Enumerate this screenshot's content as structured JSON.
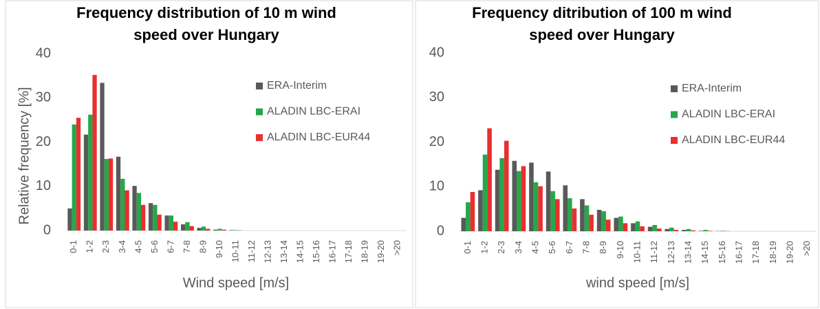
{
  "chart_data": [
    {
      "type": "bar",
      "title": [
        "Frequency distribution of 10 m wind",
        "speed over Hungary"
      ],
      "y_label": "Relative frequency [%]",
      "x_label": "Wind speed [m/s]",
      "categories": [
        "0-1",
        "1-2",
        "2-3",
        "3-4",
        "4-5",
        "5-6",
        "6-7",
        "7-8",
        "8-9",
        "9-10",
        "10-11",
        "11-12",
        "12-13",
        "13-14",
        "14-15",
        "15-16",
        "16-17",
        "17-18",
        "18-19",
        "19-20",
        ">20"
      ],
      "series": [
        {
          "name": "ERA-Interim",
          "color": "#595959",
          "values": [
            5,
            21.7,
            33.4,
            16.7,
            10.1,
            6.2,
            3.4,
            1.4,
            0.6,
            0.2,
            0.1,
            0,
            0,
            0,
            0,
            0,
            0,
            0,
            0,
            0,
            0
          ]
        },
        {
          "name": "ALADIN LBC-ERAI",
          "color": "#24a84a",
          "values": [
            24,
            26.2,
            16.2,
            11.7,
            8.5,
            5.8,
            3.4,
            1.9,
            0.9,
            0.4,
            0.1,
            0,
            0,
            0,
            0,
            0,
            0,
            0,
            0,
            0,
            0
          ]
        },
        {
          "name": "ALADIN LBC-EUR44",
          "color": "#e8302e",
          "values": [
            25.5,
            35.2,
            16.3,
            9.1,
            5.8,
            3.6,
            2.0,
            1.0,
            0.4,
            0.2,
            0.05,
            0,
            0,
            0,
            0,
            0,
            0,
            0,
            0,
            0,
            0
          ]
        }
      ],
      "ylim": [
        0,
        40
      ],
      "yticks": [
        0,
        10,
        20,
        30,
        40
      ],
      "grid": false
    },
    {
      "type": "bar",
      "title": [
        "Frequency ditribution of 100 m wind",
        "speed over Hungary"
      ],
      "x_label": "wind speed [m/s]",
      "categories": [
        "0-1",
        "1-2",
        "2-3",
        "3-4",
        "4-5",
        "5-6",
        "6-7",
        "7-8",
        "8-9",
        "9-10",
        "10-11",
        "11-12",
        "12-13",
        "13-14",
        "14-15",
        "15-16",
        "16-17",
        "17-18",
        "18-19",
        "19-20",
        ">20"
      ],
      "series": [
        {
          "name": "ERA-Interim",
          "color": "#595959",
          "values": [
            3.0,
            9.2,
            13.8,
            15.8,
            15.4,
            13.4,
            10.3,
            7.2,
            4.8,
            3.0,
            1.8,
            1.0,
            0.5,
            0.3,
            0.1,
            0.05,
            0,
            0,
            0,
            0,
            0
          ]
        },
        {
          "name": "ALADIN LBC-ERAI",
          "color": "#24a84a",
          "values": [
            6.5,
            17.2,
            16.4,
            13.5,
            11.0,
            9.0,
            7.4,
            5.8,
            4.5,
            3.3,
            2.2,
            1.4,
            0.8,
            0.5,
            0.3,
            0.1,
            0,
            0,
            0,
            0,
            0
          ]
        },
        {
          "name": "ALADIN LBC-EUR44",
          "color": "#e8302e",
          "values": [
            8.8,
            23.1,
            20.3,
            14.6,
            10.1,
            7.2,
            5.1,
            3.7,
            2.6,
            1.8,
            1.1,
            0.6,
            0.3,
            0.2,
            0.1,
            0.05,
            0,
            0,
            0,
            0,
            0
          ]
        }
      ],
      "ylim": [
        0,
        40
      ],
      "yticks": [
        0,
        10,
        20,
        30,
        40
      ],
      "grid": false
    }
  ]
}
